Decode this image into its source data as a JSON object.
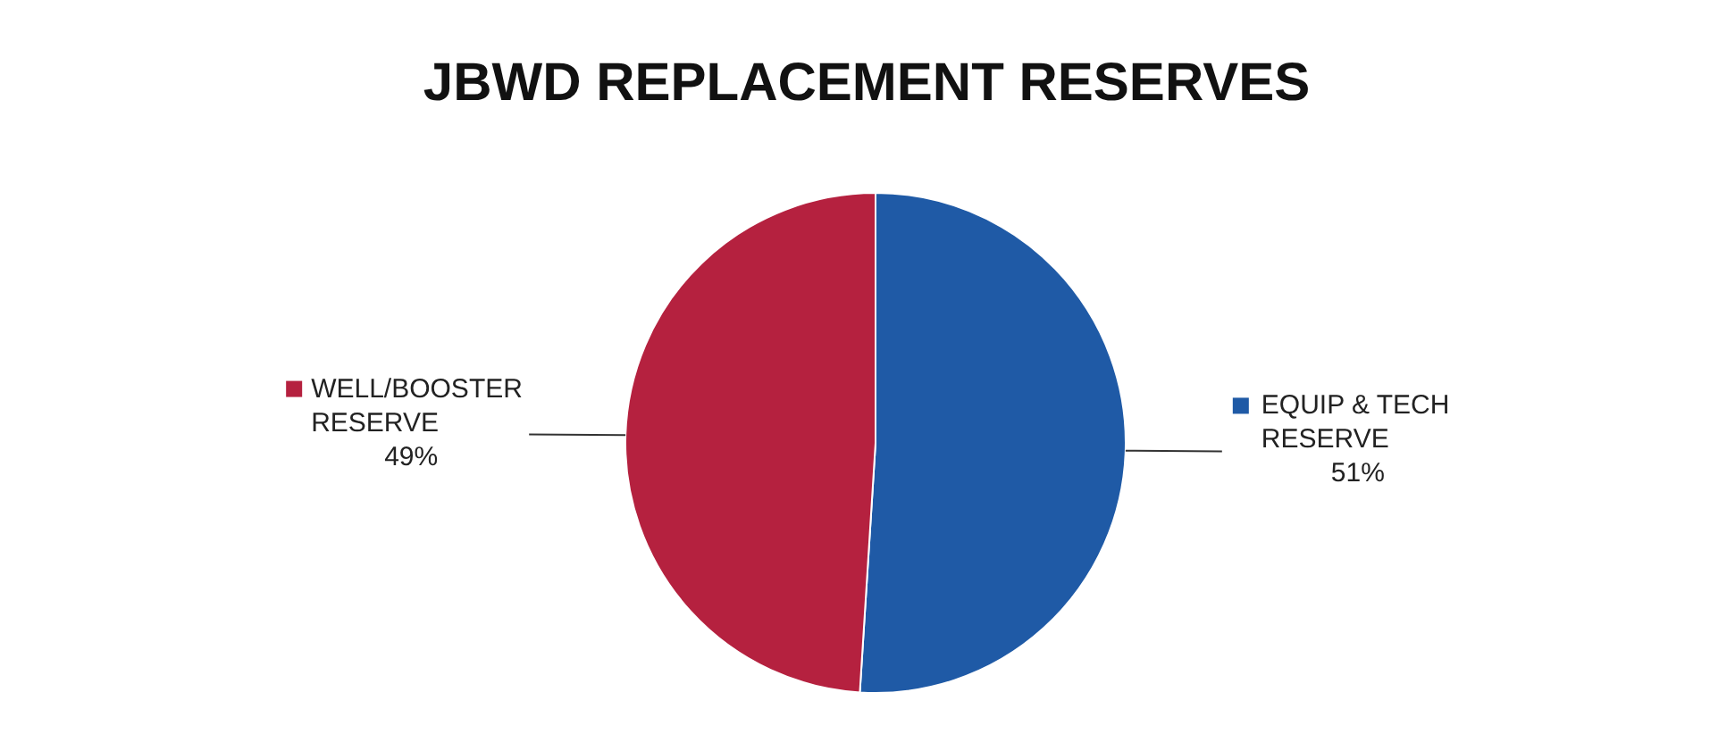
{
  "chart_data": {
    "type": "pie",
    "title": "JBWD REPLACEMENT RESERVES",
    "categories": [
      "EQUIP & TECH RESERVE",
      "WELL/BOOSTER RESERVE"
    ],
    "values": [
      51,
      49
    ],
    "colors": [
      "#1f5aa6",
      "#b5213f"
    ],
    "value_labels": [
      "51%",
      "49%"
    ],
    "legend": "right"
  }
}
